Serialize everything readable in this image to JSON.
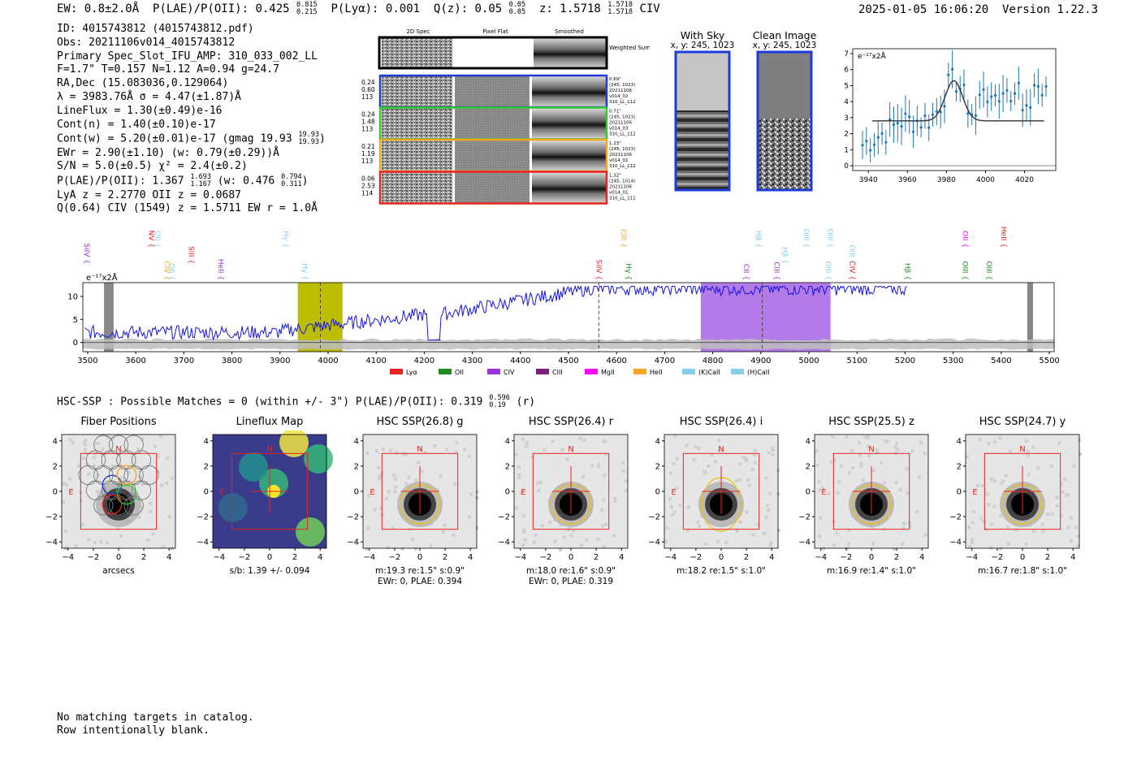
{
  "header": {
    "ew": "EW: 0.8±2.0Å",
    "plae_label": "P(LAE)/P(OII): 0.425",
    "plae_hi": "0.815",
    "plae_lo": "0.215",
    "plya": "P(Lyα): 0.001",
    "qz_label": "Q(z): 0.05",
    "qz_hi": "0.05",
    "qz_lo": "0.05",
    "z_label": "z: 1.5718",
    "z_hi": "1.5718",
    "z_lo": "1.5718",
    "line": "CIV",
    "timestamp": "2025-01-05 16:06:20",
    "version": "Version 1.22.3"
  },
  "info": {
    "l1": "ID: 4015743812 (4015743812.pdf)",
    "l2": "Obs: 20211106v014_4015743812",
    "l3": "Primary Spec_Slot_IFU_AMP: 310_033_002_LL",
    "l4": "F=1.7\"  T=0.157  N=1.12  A=0.94  g=24.7",
    "l5": "RA,Dec (15.083036,0.129064)",
    "l6": "λ = 3983.76Å  σ = 4.47(±1.87)Å",
    "l7": "LineFlux = 1.30(±0.49)e-16",
    "l8": "Cont(n) = 1.40(±0.10)e-17",
    "l9a": "Cont(w) = 5.20(±0.01)e-17 (gmag 19.93",
    "l9_hi": "19.93",
    "l9_lo": "19.93",
    "l9b": ")",
    "l10": "EWr = 2.90(±1.10) (w: 0.79(±0.29))Å",
    "l11": "S/N = 5.0(±0.5)  χ² = 2.4(±0.2)",
    "l12a": "P(LAE)/P(OII): 1.367",
    "l12_hi": "1.693",
    "l12_lo": "1.167",
    "l12b": "(w: 0.476",
    "l12_hi2": "0.794",
    "l12_lo2": "0.311",
    "l12c": ")",
    "l13": "LyA z = 2.2770  OII z = 0.0687",
    "l14": "Q(0.64) CIV (1549) z = 1.5711  EW r = 1.0Å"
  },
  "spec2d": {
    "col_headers": [
      "2D Spec",
      "Pixel Flat",
      "Smoothed"
    ],
    "weighted_label": "Weighted Sum",
    "rows": [
      {
        "left": [
          "0.24",
          "0.60",
          "113"
        ],
        "right": [
          "0.69\"",
          "(245, 1023)",
          "20211106",
          "v014_02",
          "310_LL_112"
        ],
        "color": "#1f3bd6"
      },
      {
        "left": [
          "0.24",
          "1.48",
          "113"
        ],
        "right": [
          "0.71\"",
          "(245, 1023)",
          "20211106",
          "v014_03",
          "310_LL_112"
        ],
        "color": "#2ecc2e"
      },
      {
        "left": [
          "0.21",
          "1.19",
          "113"
        ],
        "right": [
          "1.23\"",
          "(245, 1023)",
          "20211106",
          "v014_01",
          "310_LL_112"
        ],
        "color": "#f5a623"
      },
      {
        "left": [
          "0.06",
          "2.53",
          "114"
        ],
        "right": [
          "1.32\"",
          "(245, 1014)",
          "20211106",
          "v014_01",
          "310_LL_111"
        ],
        "color": "#e8231f"
      }
    ]
  },
  "cutouts": {
    "with_sky_title": "With Sky",
    "with_sky_sub": "x, y: 245, 1023",
    "clean_title": "Clean Image",
    "clean_sub": "x, y: 245, 1023"
  },
  "zoom_plot": {
    "unit_label": "e⁻¹⁷x2Å",
    "x_ticks": [
      "3940",
      "3960",
      "3980",
      "4000",
      "4020"
    ],
    "y_ticks": [
      "0",
      "1",
      "2",
      "3",
      "4",
      "5",
      "6",
      "7"
    ],
    "xlim": [
      3932,
      4036
    ],
    "ylim": [
      -0.3,
      7.3
    ]
  },
  "full_spectrum": {
    "unit_label": "e⁻¹⁷x2Å",
    "x_ticks": [
      "3500",
      "3600",
      "3700",
      "3800",
      "3900",
      "4000",
      "4100",
      "4200",
      "4300",
      "4400",
      "4500",
      "4600",
      "4700",
      "4800",
      "4900",
      "5000",
      "5100",
      "5200",
      "5300",
      "5400",
      "5500"
    ],
    "y_ticks": [
      "0",
      "5",
      "10"
    ],
    "xlim": [
      3490,
      5510
    ],
    "ylim": [
      -2,
      13
    ],
    "lines_top": [
      {
        "name": "SiIV",
        "color": "#9b30d9",
        "wave": 3493
      },
      {
        "name": "OII",
        "color": "#87ceeb",
        "wave": 3640
      },
      {
        "name": "CIV",
        "color": "#f5a623",
        "wave": 3660
      },
      {
        "name": "OII",
        "color": "#87ceeb",
        "wave": 3670
      },
      {
        "name": "NV",
        "color": "#e8231f",
        "wave": 3628
      },
      {
        "name": "SiII",
        "color": "#e8231f",
        "wave": 3710
      },
      {
        "name": "HeII",
        "color": "#9b30d9",
        "wave": 3772
      },
      {
        "name": "Hγ",
        "color": "#87ceeb",
        "wave": 3907
      },
      {
        "name": "Hγ",
        "color": "#87ceeb",
        "wave": 3947
      },
      {
        "name": "SiIV",
        "color": "#e8231f",
        "wave": 4558
      },
      {
        "name": "CIII",
        "color": "#f5a623",
        "wave": 4610
      },
      {
        "name": "Hγ",
        "color": "#228b22",
        "wave": 4620
      },
      {
        "name": "CII",
        "color": "#9b30d9",
        "wave": 4865
      },
      {
        "name": "Hβ",
        "color": "#87ceeb",
        "wave": 4890
      },
      {
        "name": "CIII",
        "color": "#9b30d9",
        "wave": 4928
      },
      {
        "name": "Hβ",
        "color": "#87ceeb",
        "wave": 4945
      },
      {
        "name": "OIII",
        "color": "#87ceeb",
        "wave": 4990
      },
      {
        "name": "OIII",
        "color": "#87ceeb",
        "wave": 5035
      },
      {
        "name": "CIV",
        "color": "#e8231f",
        "wave": 5085
      },
      {
        "name": "OIII",
        "color": "#87ceeb",
        "wave": 5040
      },
      {
        "name": "OIII",
        "color": "#87ceeb",
        "wave": 5085
      },
      {
        "name": "Hβ",
        "color": "#228b22",
        "wave": 5200
      },
      {
        "name": "OII",
        "color": "#ff00ff",
        "wave": 5320
      },
      {
        "name": "OIII",
        "color": "#228b22",
        "wave": 5320
      },
      {
        "name": "OIII",
        "color": "#228b22",
        "wave": 5370
      },
      {
        "name": "HeII",
        "color": "#e8231f",
        "wave": 5400
      }
    ],
    "legend": [
      {
        "label": "Lyα",
        "color": "#e8231f"
      },
      {
        "label": "OII",
        "color": "#228b22"
      },
      {
        "label": "CIV",
        "color": "#9b30d9"
      },
      {
        "label": "CIII",
        "color": "#7a1f7a"
      },
      {
        "label": "MgII",
        "color": "#ff00ff"
      },
      {
        "label": "HeII",
        "color": "#f5a623"
      },
      {
        "label": "(K)CaII",
        "color": "#87ceeb"
      },
      {
        "label": "(H)CaII",
        "color": "#87ceeb"
      }
    ]
  },
  "hsc": {
    "summary_a": "HSC-SSP : Possible Matches = 0 (within +/- 3\")  P(LAE)/P(OII): 0.319",
    "summary_hi": "0.596",
    "summary_lo": "0.19",
    "summary_b": "(r)",
    "ticks": [
      "−4",
      "−2",
      "0",
      "2",
      "4"
    ],
    "stamps": [
      {
        "title": "Fiber Positions",
        "info1": "arcsecs",
        "info2": ""
      },
      {
        "title": "Lineflux Map",
        "info1": "s/b: 1.39 +/- 0.094",
        "info2": ""
      },
      {
        "title": "HSC SSP(26.8) g",
        "info1": "m:19.3  re:1.5\"  s:0.9\"",
        "info2": "EWr: 0, PLAE: 0.394"
      },
      {
        "title": "HSC SSP(26.4) r",
        "info1": "m:18.0  re:1.6\"  s:0.9\"",
        "info2": "EWr: 0, PLAE: 0.319"
      },
      {
        "title": "HSC SSP(26.4) i",
        "info1": "m:18.2  re:1.5\"  s:1.0\"",
        "info2": ""
      },
      {
        "title": "HSC SSP(25.5) z",
        "info1": "m:16.9  re:1.4\"  s:1.0\"",
        "info2": ""
      },
      {
        "title": "HSC SSP(24.7) y",
        "info1": "m:16.7  re:1.8\"  s:1.0\"",
        "info2": ""
      }
    ],
    "compass_n": "N",
    "compass_e": "E"
  },
  "footer": {
    "l1": "No matching targets in catalog.",
    "l2": "Row intentionally blank."
  }
}
